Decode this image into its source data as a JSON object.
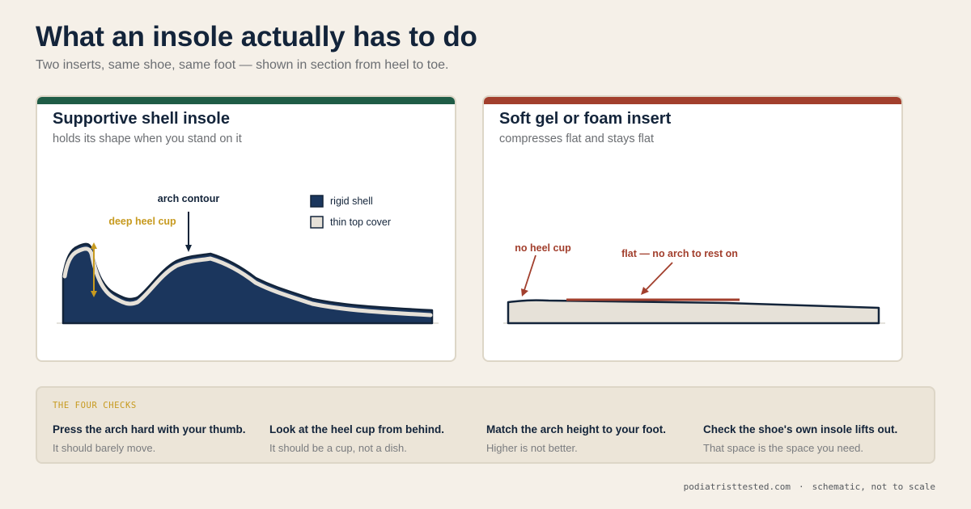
{
  "header": {
    "title": "What an insole actually has to do",
    "subtitle": "Two inserts, same shoe, same foot — shown in section from heel to toe."
  },
  "panels": [
    {
      "title": "Supportive shell insole",
      "subtitle": "holds its shape when you stand on it",
      "band_color": "#1f5c46",
      "annotations": {
        "heel": "deep heel cup",
        "arch": "arch contour"
      },
      "legend": [
        "rigid shell",
        "thin top cover"
      ]
    },
    {
      "title": "Soft gel or foam insert",
      "subtitle": "compresses flat and stays flat",
      "band_color": "#a23f2d",
      "annotations": {
        "heel": "no heel cup",
        "arch": "flat — no arch to rest on"
      }
    }
  ],
  "colors": {
    "shell": "#1b365d",
    "cover": "#e6e1d8",
    "outline": "#13243a",
    "gold": "#c79a1f",
    "rust": "#a23f2d"
  },
  "checks": {
    "label": "THE FOUR CHECKS",
    "items": [
      {
        "title": "Press the arch hard with your thumb.",
        "sub": "It should barely move."
      },
      {
        "title": "Look at the heel cup from behind.",
        "sub": "It should be a cup, not a dish."
      },
      {
        "title": "Match the arch height to your foot.",
        "sub": "Higher is not better."
      },
      {
        "title": "Check the shoe's own insole lifts out.",
        "sub": "That space is the space you need."
      }
    ]
  },
  "footer": {
    "site": "podiatristtested.com",
    "note": "schematic, not to scale"
  }
}
